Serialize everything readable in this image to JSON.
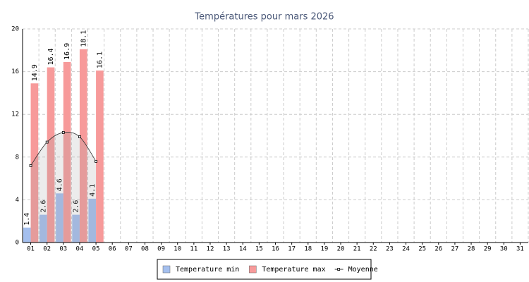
{
  "chart_data": {
    "type": "bar",
    "title": "Températures pour mars 2026",
    "categories": [
      "01",
      "02",
      "03",
      "04",
      "05",
      "06",
      "07",
      "08",
      "09",
      "10",
      "11",
      "12",
      "13",
      "14",
      "15",
      "16",
      "17",
      "18",
      "19",
      "20",
      "21",
      "22",
      "23",
      "24",
      "25",
      "26",
      "27",
      "28",
      "29",
      "30",
      "31"
    ],
    "series": [
      {
        "name": "Temperature min",
        "color": "#a4bfee",
        "values": [
          1.4,
          2.6,
          4.6,
          2.6,
          4.1,
          null,
          null,
          null,
          null,
          null,
          null,
          null,
          null,
          null,
          null,
          null,
          null,
          null,
          null,
          null,
          null,
          null,
          null,
          null,
          null,
          null,
          null,
          null,
          null,
          null,
          null
        ]
      },
      {
        "name": "Temperature max",
        "color": "#f79a9a",
        "values": [
          14.9,
          16.4,
          16.9,
          18.1,
          16.1,
          null,
          null,
          null,
          null,
          null,
          null,
          null,
          null,
          null,
          null,
          null,
          null,
          null,
          null,
          null,
          null,
          null,
          null,
          null,
          null,
          null,
          null,
          null,
          null,
          null,
          null
        ]
      },
      {
        "name": "Moyenne",
        "type": "line",
        "color": "#333333",
        "values": [
          7.2,
          9.4,
          10.3,
          9.9,
          7.6,
          null,
          null,
          null,
          null,
          null,
          null,
          null,
          null,
          null,
          null,
          null,
          null,
          null,
          null,
          null,
          null,
          null,
          null,
          null,
          null,
          null,
          null,
          null,
          null,
          null,
          null
        ]
      }
    ],
    "ylim": [
      0,
      20
    ],
    "yticks": [
      0,
      4,
      8,
      12,
      16,
      20
    ],
    "grid": true,
    "legend": "bottom"
  }
}
